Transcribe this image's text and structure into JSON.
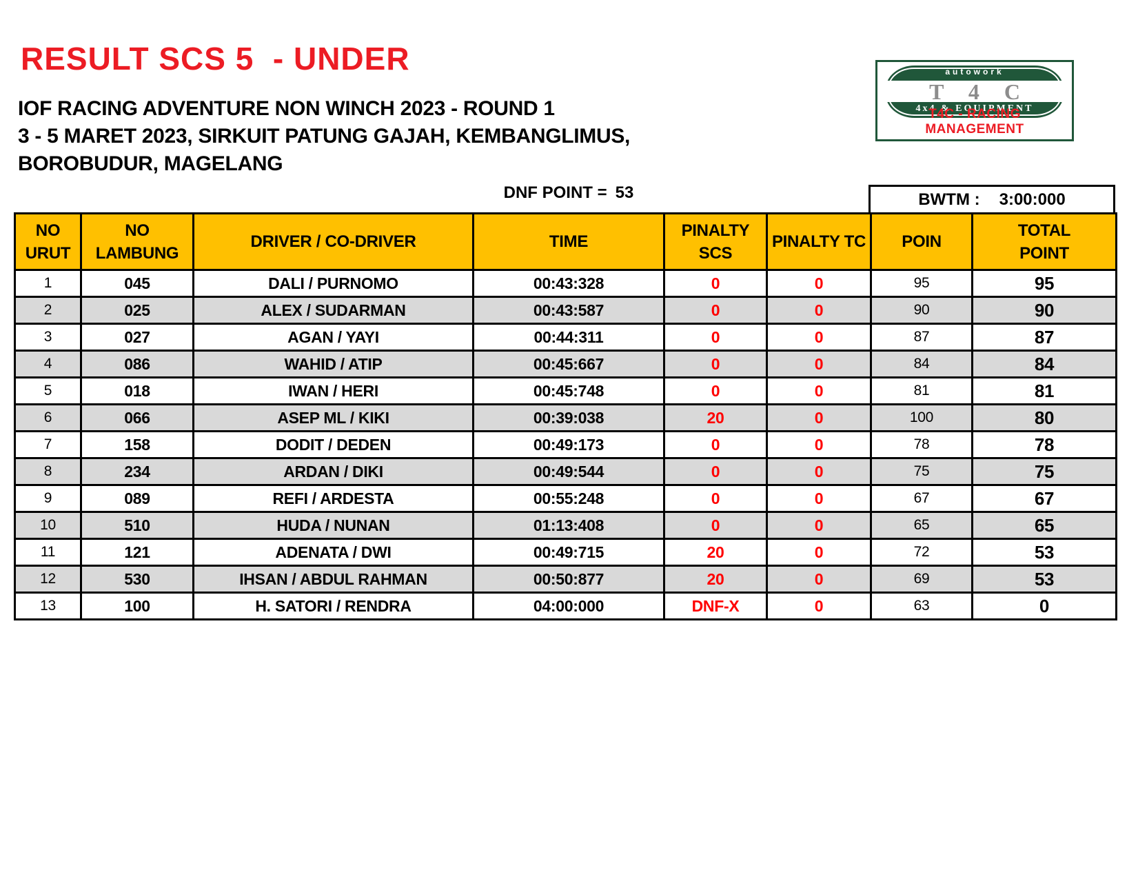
{
  "colors": {
    "title_red": "#EC1C24",
    "penalty_red": "#FF0000",
    "header_orange": "#FFC000",
    "alt_row_gray": "#D9D9D9",
    "logo_green": "#20573A",
    "logo_t4c_gray": "#8C8C8C"
  },
  "header": {
    "title": "RESULT SCS 5  - UNDER",
    "subtitle": "IOF RACING ADVENTURE NON WINCH 2023 - ROUND 1\n3 - 5 MARET 2023, SIRKUIT PATUNG GAJAH, KEMBANGLIMUS,\nBOROBUDUR, MAGELANG"
  },
  "logo": {
    "autowork": "autowork",
    "t4c": "T 4 C",
    "equipment": "4x4  &  EQUIPMENT",
    "caption": "T4C - RACING MANAGEMENT"
  },
  "dnf_note": {
    "label": "DNF POINT =",
    "value": "53"
  },
  "bwtm": {
    "label": "BWTM :",
    "value": "3:00:000"
  },
  "table": {
    "columns": [
      {
        "key": "no_urut",
        "label": "NO\nURUT"
      },
      {
        "key": "no_lambung",
        "label": "NO\nLAMBUNG"
      },
      {
        "key": "driver",
        "label": "DRIVER / CO-DRIVER"
      },
      {
        "key": "time",
        "label": "TIME"
      },
      {
        "key": "pinalty_scs",
        "label": "PINALTY\nSCS"
      },
      {
        "key": "pinalty_tc",
        "label": "PINALTY TC"
      },
      {
        "key": "poin",
        "label": "POIN"
      },
      {
        "key": "total",
        "label": "TOTAL\nPOINT"
      }
    ],
    "rows": [
      {
        "no_urut": "1",
        "no_lambung": "045",
        "driver": "DALI / PURNOMO",
        "time": "00:43:328",
        "pinalty_scs": "0",
        "pinalty_tc": "0",
        "poin": "95",
        "total": "95"
      },
      {
        "no_urut": "2",
        "no_lambung": "025",
        "driver": "ALEX / SUDARMAN",
        "time": "00:43:587",
        "pinalty_scs": "0",
        "pinalty_tc": "0",
        "poin": "90",
        "total": "90"
      },
      {
        "no_urut": "3",
        "no_lambung": "027",
        "driver": "AGAN / YAYI",
        "time": "00:44:311",
        "pinalty_scs": "0",
        "pinalty_tc": "0",
        "poin": "87",
        "total": "87"
      },
      {
        "no_urut": "4",
        "no_lambung": "086",
        "driver": "WAHID / ATIP",
        "time": "00:45:667",
        "pinalty_scs": "0",
        "pinalty_tc": "0",
        "poin": "84",
        "total": "84"
      },
      {
        "no_urut": "5",
        "no_lambung": "018",
        "driver": "IWAN / HERI",
        "time": "00:45:748",
        "pinalty_scs": "0",
        "pinalty_tc": "0",
        "poin": "81",
        "total": "81"
      },
      {
        "no_urut": "6",
        "no_lambung": "066",
        "driver": "ASEP ML / KIKI",
        "time": "00:39:038",
        "pinalty_scs": "20",
        "pinalty_tc": "0",
        "poin": "100",
        "total": "80"
      },
      {
        "no_urut": "7",
        "no_lambung": "158",
        "driver": "DODIT / DEDEN",
        "time": "00:49:173",
        "pinalty_scs": "0",
        "pinalty_tc": "0",
        "poin": "78",
        "total": "78"
      },
      {
        "no_urut": "8",
        "no_lambung": "234",
        "driver": "ARDAN / DIKI",
        "time": "00:49:544",
        "pinalty_scs": "0",
        "pinalty_tc": "0",
        "poin": "75",
        "total": "75"
      },
      {
        "no_urut": "9",
        "no_lambung": "089",
        "driver": "REFI / ARDESTA",
        "time": "00:55:248",
        "pinalty_scs": "0",
        "pinalty_tc": "0",
        "poin": "67",
        "total": "67"
      },
      {
        "no_urut": "10",
        "no_lambung": "510",
        "driver": "HUDA / NUNAN",
        "time": "01:13:408",
        "pinalty_scs": "0",
        "pinalty_tc": "0",
        "poin": "65",
        "total": "65"
      },
      {
        "no_urut": "11",
        "no_lambung": "121",
        "driver": "ADENATA / DWI",
        "time": "00:49:715",
        "pinalty_scs": "20",
        "pinalty_tc": "0",
        "poin": "72",
        "total": "53"
      },
      {
        "no_urut": "12",
        "no_lambung": "530",
        "driver": "IHSAN / ABDUL RAHMAN",
        "time": "00:50:877",
        "pinalty_scs": "20",
        "pinalty_tc": "0",
        "poin": "69",
        "total": "53"
      },
      {
        "no_urut": "13",
        "no_lambung": "100",
        "driver": "H. SATORI / RENDRA",
        "time": "04:00:000",
        "pinalty_scs": "DNF-X",
        "pinalty_tc": "0",
        "poin": "63",
        "total": "0"
      }
    ]
  }
}
